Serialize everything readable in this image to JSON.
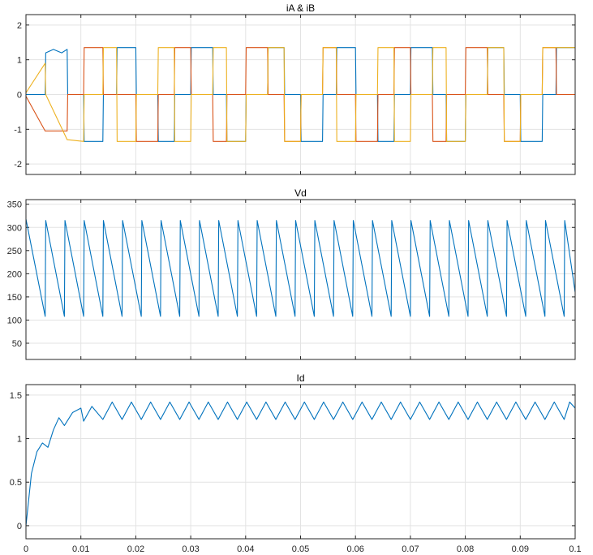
{
  "chart_data": [
    {
      "type": "line",
      "title": "iA & iB",
      "xlim": [
        0,
        0.1
      ],
      "ylim": [
        -2.3,
        2.3
      ],
      "yticks": [
        -2,
        -1,
        0,
        1,
        2
      ],
      "ytick_labels": [
        "-2",
        "-1",
        "0",
        "1",
        "2"
      ],
      "grid": true,
      "series": [
        {
          "color": "#0072bd",
          "x": [
            0,
            0.0035,
            0.0036,
            0.005,
            0.0065,
            0.0075,
            0.0076,
            0.0105,
            0.0106,
            0.014,
            0.0141,
            0.0165,
            0.0166,
            0.02,
            0.0201,
            0.021,
            0.024,
            0.0241,
            0.027,
            0.0271,
            0.03,
            0.0301,
            0.034,
            0.0341,
            0.0365,
            0.0366,
            0.04,
            0.0401,
            0.044,
            0.0441,
            0.047,
            0.0471,
            0.05,
            0.0501,
            0.054,
            0.0541,
            0.0565,
            0.0566,
            0.06,
            0.0601,
            0.064,
            0.0641,
            0.067,
            0.0671,
            0.07,
            0.0701,
            0.074,
            0.0741,
            0.0765,
            0.0766,
            0.08,
            0.0801,
            0.084,
            0.0841,
            0.087,
            0.0871,
            0.09,
            0.0901,
            0.094,
            0.0941,
            0.0965,
            0.0966,
            0.1
          ],
          "y": [
            0,
            0,
            1.2,
            1.3,
            1.2,
            1.3,
            0,
            0,
            -1.35,
            -1.35,
            0,
            0,
            1.35,
            1.35,
            0,
            0,
            0,
            -1.35,
            -1.35,
            0,
            0,
            1.35,
            1.35,
            0,
            0,
            -1.35,
            -1.35,
            0,
            0,
            1.35,
            1.35,
            0,
            0,
            -1.35,
            -1.35,
            0,
            0,
            1.35,
            1.35,
            0,
            0,
            -1.35,
            -1.35,
            0,
            0,
            1.35,
            1.35,
            0,
            0,
            -1.35,
            -1.35,
            0,
            0,
            1.35,
            1.35,
            0,
            0,
            -1.35,
            -1.35,
            0,
            0,
            1.35,
            1.35
          ]
        },
        {
          "color": "#d95319",
          "x": [
            0,
            0.0035,
            0.0036,
            0.0075,
            0.0076,
            0.0105,
            0.0106,
            0.014,
            0.0141,
            0.0165,
            0.0166,
            0.02,
            0.0201,
            0.024,
            0.0241,
            0.027,
            0.0271,
            0.03,
            0.0301,
            0.034,
            0.0341,
            0.0365,
            0.0366,
            0.04,
            0.0401,
            0.044,
            0.0441,
            0.047,
            0.0471,
            0.05,
            0.0501,
            0.054,
            0.0541,
            0.0565,
            0.0566,
            0.06,
            0.0601,
            0.064,
            0.0641,
            0.067,
            0.0671,
            0.07,
            0.0701,
            0.074,
            0.0741,
            0.0765,
            0.0766,
            0.08,
            0.0801,
            0.084,
            0.0841,
            0.087,
            0.0871,
            0.09,
            0.0901,
            0.094,
            0.0941,
            0.0965,
            0.0966,
            0.1
          ],
          "y": [
            -0.05,
            -1.05,
            -1.05,
            -1.05,
            0,
            0,
            1.35,
            1.35,
            0,
            0,
            0,
            0,
            -1.35,
            -1.35,
            0,
            0,
            1.35,
            1.35,
            0,
            0,
            -1.35,
            -1.35,
            0,
            0,
            1.35,
            1.35,
            0,
            0,
            -1.35,
            -1.35,
            0,
            0,
            1.35,
            1.35,
            0,
            0,
            -1.35,
            -1.35,
            0,
            0,
            1.35,
            1.35,
            0,
            0,
            -1.35,
            -1.35,
            0,
            0,
            1.35,
            1.35,
            0,
            0,
            -1.35,
            -1.35,
            0,
            0,
            1.35,
            1.35,
            0,
            0
          ]
        },
        {
          "color": "#edb120",
          "x": [
            0,
            0.0035,
            0.0036,
            0.0075,
            0.0076,
            0.0105,
            0.0106,
            0.014,
            0.0141,
            0.0165,
            0.0166,
            0.02,
            0.0201,
            0.024,
            0.0241,
            0.027,
            0.0271,
            0.03,
            0.0301,
            0.034,
            0.0341,
            0.0365,
            0.0366,
            0.04,
            0.0401,
            0.044,
            0.0441,
            0.047,
            0.0471,
            0.05,
            0.0501,
            0.054,
            0.0541,
            0.0565,
            0.0566,
            0.06,
            0.0601,
            0.064,
            0.0641,
            0.067,
            0.0671,
            0.07,
            0.0701,
            0.074,
            0.0741,
            0.0765,
            0.0766,
            0.08,
            0.0801,
            0.084,
            0.0841,
            0.087,
            0.0871,
            0.09,
            0.0901,
            0.094,
            0.0941,
            0.0965,
            0.0966,
            0.1
          ],
          "y": [
            0.05,
            0.9,
            0,
            -1.3,
            -1.3,
            -1.35,
            0,
            0,
            1.35,
            1.35,
            -1.35,
            -1.35,
            0,
            0,
            1.35,
            1.35,
            -1.35,
            -1.35,
            0,
            0,
            1.35,
            1.35,
            -1.35,
            -1.35,
            0,
            0,
            1.35,
            1.35,
            -1.35,
            -1.35,
            0,
            0,
            1.35,
            1.35,
            -1.35,
            -1.35,
            0,
            0,
            1.35,
            1.35,
            -1.35,
            -1.35,
            0,
            0,
            1.35,
            1.35,
            -1.35,
            -1.35,
            0,
            0,
            1.35,
            1.35,
            -1.35,
            -1.35,
            0,
            0,
            1.35,
            1.35,
            1.35,
            1.35
          ]
        }
      ]
    },
    {
      "type": "line",
      "title": "Vd",
      "xlim": [
        0,
        0.1
      ],
      "ylim": [
        15,
        360
      ],
      "yticks": [
        50,
        100,
        150,
        200,
        250,
        300,
        350
      ],
      "ytick_labels": [
        "50",
        "100",
        "150",
        "200",
        "250",
        "300",
        "350"
      ],
      "grid": true,
      "series": [
        {
          "color": "#0072bd",
          "x": [
            0,
            0.0035,
            0.0036,
            0.007,
            0.0071,
            0.0105,
            0.0106,
            0.014,
            0.0141,
            0.0175,
            0.0176,
            0.021,
            0.0211,
            0.0245,
            0.0246,
            0.028,
            0.0281,
            0.0315,
            0.0316,
            0.035,
            0.0351,
            0.0385,
            0.0386,
            0.042,
            0.0421,
            0.0455,
            0.0456,
            0.049,
            0.0491,
            0.0525,
            0.0526,
            0.056,
            0.0561,
            0.0595,
            0.0596,
            0.063,
            0.0631,
            0.0665,
            0.0666,
            0.07,
            0.0701,
            0.0735,
            0.0736,
            0.077,
            0.0771,
            0.0805,
            0.0806,
            0.084,
            0.0841,
            0.0875,
            0.0876,
            0.091,
            0.0911,
            0.0945,
            0.0946,
            0.098,
            0.0981,
            0.1
          ],
          "y": [
            318,
            108,
            315,
            108,
            315,
            108,
            315,
            108,
            315,
            108,
            315,
            108,
            315,
            108,
            315,
            108,
            315,
            108,
            315,
            108,
            315,
            108,
            315,
            108,
            315,
            108,
            315,
            108,
            315,
            108,
            315,
            108,
            315,
            108,
            315,
            108,
            315,
            108,
            315,
            108,
            315,
            108,
            315,
            108,
            315,
            108,
            315,
            108,
            315,
            108,
            315,
            108,
            315,
            108,
            315,
            108,
            315,
            160
          ]
        }
      ]
    },
    {
      "type": "line",
      "title": "Id",
      "xlim": [
        0,
        0.1
      ],
      "ylim": [
        -0.15,
        1.62
      ],
      "yticks": [
        0,
        0.5,
        1,
        1.5
      ],
      "ytick_labels": [
        "0",
        "0.5",
        "1",
        "1.5"
      ],
      "xticks": [
        0,
        0.01,
        0.02,
        0.03,
        0.04,
        0.05,
        0.06,
        0.07,
        0.08,
        0.09,
        0.1
      ],
      "xtick_labels": [
        "0",
        "0.01",
        "0.02",
        "0.03",
        "0.04",
        "0.05",
        "0.06",
        "0.07",
        "0.08",
        "0.09",
        "0.1"
      ],
      "grid": true,
      "series": [
        {
          "color": "#0072bd",
          "x": [
            0,
            0.001,
            0.002,
            0.003,
            0.004,
            0.005,
            0.006,
            0.007,
            0.0085,
            0.01,
            0.0105,
            0.012,
            0.014,
            0.0157,
            0.0175,
            0.0192,
            0.021,
            0.0227,
            0.0245,
            0.0262,
            0.028,
            0.0297,
            0.0315,
            0.0332,
            0.035,
            0.0367,
            0.0385,
            0.0402,
            0.042,
            0.0437,
            0.0455,
            0.0472,
            0.049,
            0.0507,
            0.0525,
            0.0542,
            0.056,
            0.0577,
            0.0595,
            0.0612,
            0.063,
            0.0647,
            0.0665,
            0.0682,
            0.07,
            0.0717,
            0.0735,
            0.0752,
            0.077,
            0.0787,
            0.0805,
            0.0822,
            0.084,
            0.0857,
            0.0875,
            0.0892,
            0.091,
            0.0927,
            0.0945,
            0.0962,
            0.098,
            0.099,
            0.1
          ],
          "y": [
            0,
            0.6,
            0.85,
            0.95,
            0.9,
            1.1,
            1.24,
            1.15,
            1.3,
            1.35,
            1.2,
            1.37,
            1.22,
            1.42,
            1.22,
            1.42,
            1.22,
            1.42,
            1.22,
            1.42,
            1.22,
            1.42,
            1.22,
            1.42,
            1.22,
            1.42,
            1.22,
            1.42,
            1.22,
            1.42,
            1.22,
            1.42,
            1.22,
            1.42,
            1.22,
            1.42,
            1.22,
            1.42,
            1.22,
            1.42,
            1.22,
            1.42,
            1.22,
            1.42,
            1.22,
            1.42,
            1.22,
            1.42,
            1.22,
            1.42,
            1.22,
            1.42,
            1.22,
            1.42,
            1.22,
            1.42,
            1.22,
            1.42,
            1.22,
            1.42,
            1.22,
            1.42,
            1.35
          ]
        }
      ]
    }
  ]
}
